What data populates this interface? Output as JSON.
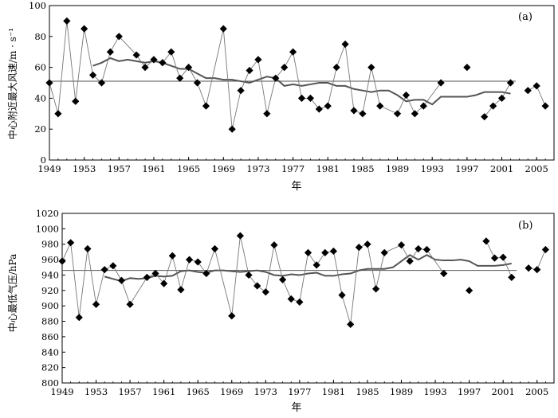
{
  "chart_data": [
    {
      "panel": "(a)",
      "type": "line",
      "ylabel": "中心附近最大风速/m · s⁻¹",
      "xlabel": "年",
      "ylim": [
        0,
        100
      ],
      "yticks": [
        0,
        20,
        40,
        60,
        80,
        100
      ],
      "xlim": [
        1949,
        2007
      ],
      "xticks": [
        1949,
        1953,
        1957,
        1961,
        1965,
        1969,
        1973,
        1977,
        1981,
        1985,
        1989,
        1993,
        1997,
        2001,
        2005
      ],
      "reference_line": 51,
      "series": [
        {
          "kind": "annual",
          "marker": "diamond",
          "segments": [
            {
              "x": [
                1949,
                1950,
                1951,
                1952,
                1953,
                1954,
                1955,
                1956,
                1957,
                1959,
                1960,
                1961,
                1962,
                1963,
                1964,
                1965,
                1966,
                1967,
                1969,
                1970,
                1971,
                1972,
                1973,
                1974,
                1975,
                1976,
                1977,
                1978,
                1979,
                1980,
                1981,
                1982,
                1983,
                1984,
                1985,
                1986,
                1987,
                1989,
                1990,
                1991,
                1992,
                1994
              ],
              "y": [
                50,
                30,
                90,
                38,
                85,
                55,
                50,
                70,
                80,
                68,
                60,
                65,
                63,
                70,
                53,
                60,
                50,
                35,
                85,
                20,
                45,
                58,
                65,
                30,
                53,
                60,
                70,
                40,
                40,
                33,
                35,
                60,
                75,
                32,
                30,
                60,
                35,
                30,
                42,
                30,
                35,
                50
              ]
            },
            {
              "x": [
                1997
              ],
              "y": [
                60
              ]
            },
            {
              "x": [
                1999,
                2000,
                2001,
                2002
              ],
              "y": [
                28,
                35,
                40,
                50
              ]
            },
            {
              "x": [
                2004,
                2005,
                2006
              ],
              "y": [
                45,
                48,
                35
              ]
            }
          ]
        },
        {
          "kind": "moving_average",
          "x": [
            1954,
            1955,
            1956,
            1957,
            1958,
            1959,
            1960,
            1961,
            1962,
            1963,
            1964,
            1965,
            1966,
            1967,
            1968,
            1969,
            1970,
            1971,
            1972,
            1973,
            1974,
            1975,
            1976,
            1977,
            1978,
            1979,
            1980,
            1981,
            1982,
            1983,
            1984,
            1985,
            1986,
            1987,
            1988,
            1989,
            1990,
            1991,
            1992,
            1993,
            1994,
            1995,
            1996,
            1997,
            1998,
            1999,
            2000,
            2001,
            2002
          ],
          "y": [
            61,
            63,
            66,
            64,
            65,
            64,
            63,
            64,
            63,
            61,
            59,
            59,
            56,
            53,
            53,
            52,
            52,
            51,
            50,
            52,
            54,
            53,
            48,
            49,
            48,
            49,
            50,
            50,
            48,
            48,
            46,
            45,
            44,
            45,
            45,
            42,
            38,
            39,
            39,
            36,
            41,
            41,
            41,
            41,
            42,
            44,
            44,
            44,
            43
          ]
        }
      ]
    },
    {
      "panel": "(b)",
      "type": "line",
      "ylabel": "中心最低气压/hPa",
      "xlabel": "年",
      "ylim": [
        800,
        1020
      ],
      "yticks": [
        800,
        820,
        840,
        860,
        880,
        900,
        920,
        940,
        960,
        980,
        1000,
        1020
      ],
      "xlim": [
        1949,
        2007
      ],
      "xticks": [
        1949,
        1953,
        1957,
        1961,
        1965,
        1969,
        1973,
        1977,
        1981,
        1985,
        1989,
        1993,
        1997,
        2001,
        2005
      ],
      "reference_line": 946,
      "series": [
        {
          "kind": "annual",
          "marker": "diamond",
          "segments": [
            {
              "x": [
                1949,
                1950,
                1951,
                1952,
                1953,
                1954,
                1955,
                1956,
                1957,
                1959,
                1960,
                1961,
                1962,
                1963,
                1964,
                1965,
                1966,
                1967,
                1969,
                1970,
                1971,
                1972,
                1973,
                1974,
                1975,
                1976,
                1977,
                1978,
                1979,
                1980,
                1981,
                1982,
                1983,
                1984,
                1985,
                1986,
                1987,
                1989,
                1990,
                1991,
                1992,
                1994
              ],
              "y": [
                958,
                982,
                885,
                974,
                902,
                947,
                952,
                933,
                902,
                937,
                942,
                929,
                965,
                921,
                960,
                957,
                942,
                974,
                887,
                991,
                940,
                926,
                918,
                979,
                934,
                909,
                905,
                969,
                953,
                969,
                971,
                914,
                876,
                976,
                980,
                922,
                969,
                979,
                958,
                974,
                973,
                942
              ]
            },
            {
              "x": [
                1997
              ],
              "y": [
                920
              ]
            },
            {
              "x": [
                1999,
                2000,
                2001,
                2002
              ],
              "y": [
                984,
                962,
                963,
                937
              ]
            },
            {
              "x": [
                2004,
                2005,
                2006
              ],
              "y": [
                949,
                947,
                973
              ]
            }
          ]
        },
        {
          "kind": "moving_average",
          "x": [
            1954,
            1955,
            1956,
            1957,
            1958,
            1959,
            1960,
            1961,
            1962,
            1963,
            1964,
            1965,
            1966,
            1967,
            1968,
            1969,
            1970,
            1971,
            1972,
            1973,
            1974,
            1975,
            1976,
            1977,
            1978,
            1979,
            1980,
            1981,
            1982,
            1983,
            1984,
            1985,
            1986,
            1987,
            1988,
            1989,
            1990,
            1991,
            1992,
            1993,
            1994,
            1995,
            1996,
            1997,
            1998,
            1999,
            2000,
            2001,
            2002
          ],
          "y": [
            938,
            935,
            932,
            936,
            935,
            936,
            939,
            938,
            939,
            945,
            946,
            944,
            943,
            946,
            946,
            945,
            944,
            945,
            946,
            944,
            940,
            939,
            941,
            940,
            942,
            943,
            939,
            939,
            941,
            942,
            946,
            948,
            948,
            948,
            950,
            958,
            966,
            960,
            966,
            960,
            959,
            959,
            960,
            958,
            952,
            952,
            952,
            953,
            955
          ]
        }
      ]
    }
  ]
}
